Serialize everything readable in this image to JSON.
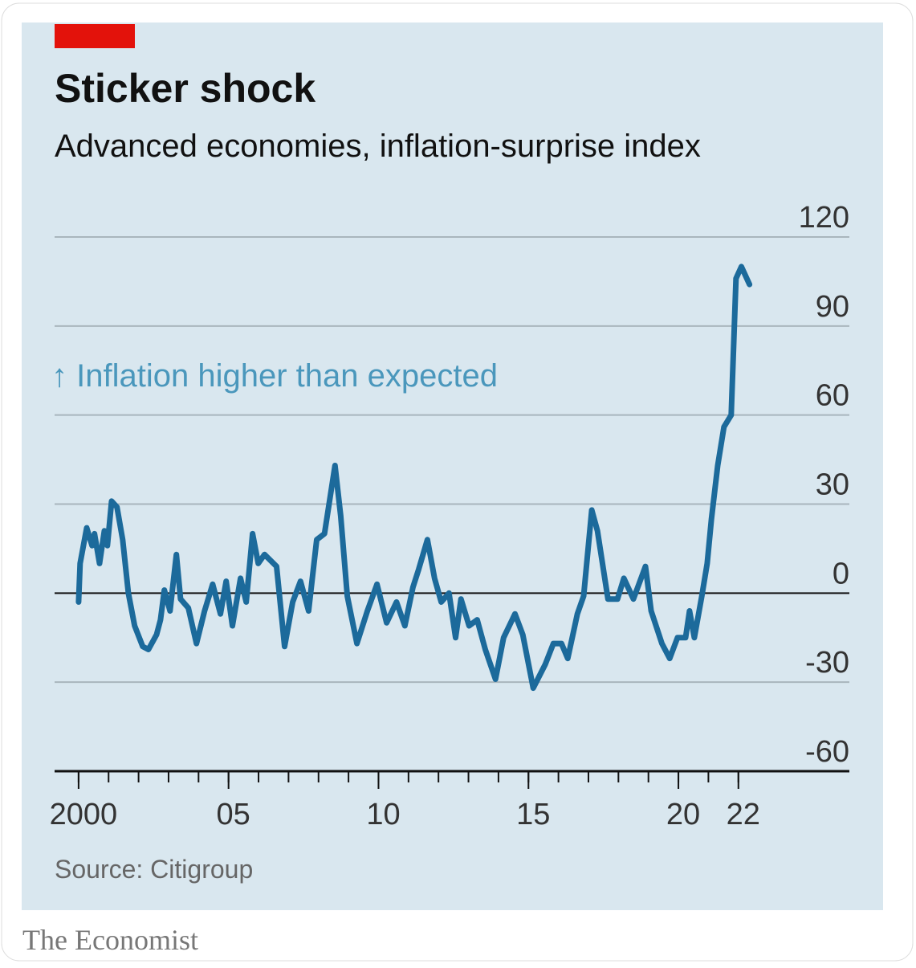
{
  "chart_data": {
    "type": "line",
    "title": "Sticker shock",
    "subtitle": "Advanced economies, inflation-surprise index",
    "annotation": "↑ Inflation higher than expected",
    "source": "Source: Citigroup",
    "publisher": "The Economist",
    "color": "#1c6a9b",
    "x": [
      2000.0,
      2000.05,
      2000.27,
      2000.45,
      2000.53,
      2000.7,
      2000.86,
      2000.96,
      2001.1,
      2001.28,
      2001.47,
      2001.66,
      2001.87,
      2002.14,
      2002.33,
      2002.6,
      2002.73,
      2002.86,
      2003.05,
      2003.26,
      2003.4,
      2003.66,
      2003.93,
      2004.2,
      2004.47,
      2004.73,
      2004.92,
      2005.13,
      2005.4,
      2005.59,
      2005.8,
      2005.99,
      2006.2,
      2006.6,
      2006.87,
      2007.14,
      2007.4,
      2007.67,
      2007.94,
      2008.2,
      2008.55,
      2008.74,
      2008.96,
      2009.28,
      2009.63,
      2009.95,
      2010.27,
      2010.6,
      2010.88,
      2011.15,
      2011.34,
      2011.63,
      2011.87,
      2012.09,
      2012.35,
      2012.57,
      2012.75,
      2013.02,
      2013.29,
      2013.56,
      2013.9,
      2014.17,
      2014.55,
      2014.81,
      2015.16,
      2015.56,
      2015.83,
      2016.1,
      2016.31,
      2016.63,
      2016.84,
      2017.11,
      2017.3,
      2017.65,
      2017.97,
      2018.18,
      2018.5,
      2018.9,
      2019.09,
      2019.45,
      2019.71,
      2019.97,
      2020.24,
      2020.37,
      2020.53,
      2020.78,
      2020.96,
      2021.1,
      2021.31,
      2021.52,
      2021.76,
      2021.92,
      2022.1,
      2022.37
    ],
    "values": [
      -3,
      10,
      22,
      16,
      20,
      10,
      21,
      16,
      31,
      29,
      18,
      0,
      -11,
      -18,
      -19,
      -14,
      -9,
      1,
      -6,
      13,
      -2,
      -5,
      -17,
      -6,
      3,
      -7,
      4,
      -11,
      5,
      -3,
      20,
      10,
      13,
      9,
      -18,
      -3,
      4,
      -6,
      18,
      20,
      43,
      26,
      -1,
      -17,
      -6,
      3,
      -10,
      -3,
      -11,
      2,
      8,
      18,
      5,
      -3,
      0,
      -15,
      -2,
      -11,
      -9,
      -19,
      -29,
      -15,
      -7,
      -14,
      -32,
      -24,
      -17,
      -17,
      -22,
      -7,
      -1,
      28,
      21,
      -2,
      -2,
      5,
      -2,
      9,
      -6,
      -17,
      -22,
      -15,
      -15,
      -6,
      -15,
      -1,
      10,
      25,
      43,
      56,
      60,
      106,
      110,
      104
    ],
    "xlim": [
      1999.2,
      2025.7
    ],
    "xticks": [
      2000,
      {
        "value": 2005,
        "label": "05"
      },
      {
        "value": 2010,
        "label": "10"
      },
      {
        "value": 2015,
        "label": "15"
      },
      {
        "value": 2020,
        "label": "20"
      },
      {
        "value": 2022,
        "label": "22"
      }
    ],
    "xminorticks": [
      2000,
      2001,
      2002,
      2003,
      2004,
      2005,
      2006,
      2007,
      2008,
      2009,
      2010,
      2011,
      2012,
      2013,
      2014,
      2015,
      2016,
      2017,
      2018,
      2019,
      2020,
      2021,
      2022
    ],
    "ylim": [
      -60,
      120
    ],
    "yticks": [
      -60,
      -30,
      0,
      30,
      60,
      90,
      120
    ],
    "grid": true
  }
}
